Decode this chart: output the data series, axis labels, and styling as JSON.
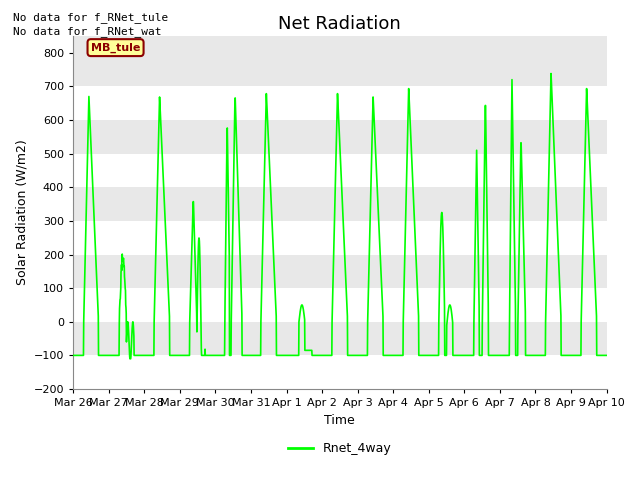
{
  "title": "Net Radiation",
  "xlabel": "Time",
  "ylabel": "Solar Radiation (W/m2)",
  "ylim": [
    -200,
    850
  ],
  "yticks": [
    -200,
    -100,
    0,
    100,
    200,
    300,
    400,
    500,
    600,
    700,
    800
  ],
  "line_color": "#00FF00",
  "line_width": 1.2,
  "background_color": "#E8E8E8",
  "band_color_light": "#DCDCDC",
  "band_color_dark": "#C8C8C8",
  "grid_color": "white",
  "text_line1": "No data for f_RNet_tule",
  "text_line2": "No data for f_RNet_wat",
  "legend_label": "Rnet_4way",
  "legend_box_color": "#FFFF99",
  "legend_box_edge": "#8B0000",
  "legend_text_color": "#8B0000",
  "x_tick_labels": [
    "Mar 26",
    "Mar 27",
    "Mar 28",
    "Mar 29",
    "Mar 30",
    "Mar 31",
    "Apr 1",
    "Apr 2",
    "Apr 3",
    "Apr 4",
    "Apr 5",
    "Apr 6",
    "Apr 7",
    "Apr 8",
    "Apr 9",
    "Apr 10"
  ],
  "title_fontsize": 13,
  "axis_fontsize": 9,
  "tick_fontsize": 8,
  "fig_width": 6.4,
  "fig_height": 4.8,
  "dpi": 100
}
